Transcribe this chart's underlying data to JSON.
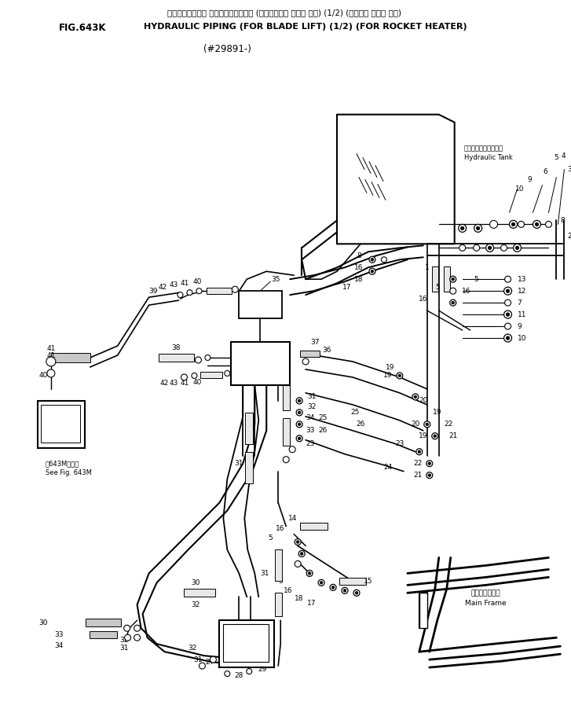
{
  "title_line1_jp": "ハイド・ロリック バイビング・ (ブ゙レード リフト ヨウ) (1/2) (ロケット ヒータ ヨウ)",
  "title_line2_en": "HYDRAULIC PIPING (FOR BLADE LIFT) (1/2) (FOR ROCKET HEATER)",
  "fig_label": "FIG.643K",
  "subtitle": "(#29891-)",
  "tank_label_jp": "ハイドロリックタンク",
  "tank_label_en": "Hydraulic Tank",
  "main_frame_jp": "メインフレーム",
  "main_frame_en": "Main Frame",
  "see_fig_jp": "第643M図参照",
  "see_fig_en": "See Fig. 643M",
  "bg_color": "#ffffff",
  "lc": "#000000",
  "tc": "#000000",
  "fw": 7.27,
  "fh": 9.02,
  "dpi": 100
}
